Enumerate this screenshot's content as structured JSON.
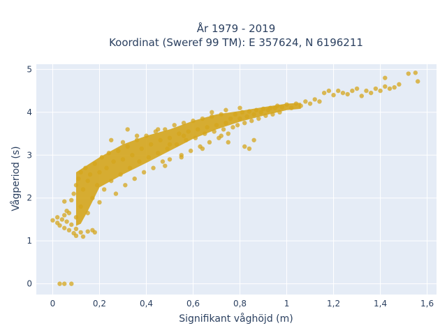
{
  "chart_data": {
    "type": "scatter",
    "title_lines": [
      "År 1979 - 2019",
      "Koordinat (Sweref 99 TM): E 357624, N 6196211"
    ],
    "xlabel": "Signifikant våghöjd (m)",
    "ylabel": "Vågperiod (s)",
    "xlim": [
      -0.07,
      1.64
    ],
    "ylim": [
      -0.25,
      5.12
    ],
    "x_ticks": [
      {
        "value": 0,
        "label": "0"
      },
      {
        "value": 0.2,
        "label": "0,2"
      },
      {
        "value": 0.4,
        "label": "0,4"
      },
      {
        "value": 0.6,
        "label": "0,6"
      },
      {
        "value": 0.8,
        "label": "0,8"
      },
      {
        "value": 1.0,
        "label": "1"
      },
      {
        "value": 1.2,
        "label": "1,2"
      },
      {
        "value": 1.4,
        "label": "1,4"
      },
      {
        "value": 1.6,
        "label": "1,6"
      }
    ],
    "y_ticks": [
      {
        "value": 0,
        "label": "0"
      },
      {
        "value": 1,
        "label": "1"
      },
      {
        "value": 2,
        "label": "2"
      },
      {
        "value": 3,
        "label": "3"
      },
      {
        "value": 4,
        "label": "4"
      },
      {
        "value": 5,
        "label": "5"
      }
    ],
    "grid": true,
    "marker_color": "#d4a51c",
    "plot_bg": "#e5ecf6",
    "series": [
      {
        "points": [
          [
            0.03,
            0.0
          ],
          [
            0.05,
            0.0
          ],
          [
            0.08,
            0.0
          ],
          [
            0.0,
            1.48
          ],
          [
            0.02,
            1.42
          ],
          [
            0.02,
            1.55
          ],
          [
            0.03,
            1.36
          ],
          [
            0.04,
            1.5
          ],
          [
            0.05,
            1.6
          ],
          [
            0.05,
            1.3
          ],
          [
            0.06,
            1.45
          ],
          [
            0.07,
            1.25
          ],
          [
            0.08,
            1.38
          ],
          [
            0.09,
            1.18
          ],
          [
            0.1,
            1.28
          ],
          [
            0.1,
            1.12
          ],
          [
            0.12,
            1.2
          ],
          [
            0.13,
            1.1
          ],
          [
            0.15,
            1.22
          ],
          [
            0.17,
            1.25
          ],
          [
            0.18,
            1.2
          ],
          [
            0.05,
            1.92
          ],
          [
            0.06,
            1.7
          ],
          [
            0.07,
            1.65
          ],
          [
            0.08,
            1.95
          ],
          [
            0.09,
            2.1
          ],
          [
            0.1,
            2.3
          ],
          [
            0.1,
            1.55
          ],
          [
            0.11,
            2.45
          ],
          [
            0.12,
            2.6
          ],
          [
            0.12,
            1.8
          ],
          [
            0.13,
            2.2
          ],
          [
            0.14,
            2.7
          ],
          [
            0.15,
            2.4
          ],
          [
            0.15,
            1.65
          ],
          [
            0.16,
            2.55
          ],
          [
            0.17,
            2.0
          ],
          [
            0.18,
            2.8
          ],
          [
            0.19,
            2.3
          ],
          [
            0.2,
            2.6
          ],
          [
            0.2,
            1.9
          ],
          [
            0.21,
            2.95
          ],
          [
            0.22,
            2.2
          ],
          [
            0.23,
            2.7
          ],
          [
            0.24,
            3.05
          ],
          [
            0.25,
            2.4
          ],
          [
            0.26,
            2.85
          ],
          [
            0.27,
            2.1
          ],
          [
            0.28,
            3.1
          ],
          [
            0.29,
            2.55
          ],
          [
            0.3,
            2.9
          ],
          [
            0.3,
            3.3
          ],
          [
            0.31,
            2.3
          ],
          [
            0.32,
            3.2
          ],
          [
            0.33,
            2.7
          ],
          [
            0.34,
            3.0
          ],
          [
            0.35,
            2.45
          ],
          [
            0.36,
            3.35
          ],
          [
            0.37,
            2.85
          ],
          [
            0.38,
            3.15
          ],
          [
            0.39,
            2.6
          ],
          [
            0.4,
            3.45
          ],
          [
            0.41,
            2.95
          ],
          [
            0.42,
            3.25
          ],
          [
            0.43,
            2.7
          ],
          [
            0.44,
            3.55
          ],
          [
            0.45,
            3.05
          ],
          [
            0.46,
            3.35
          ],
          [
            0.47,
            2.85
          ],
          [
            0.48,
            3.6
          ],
          [
            0.49,
            3.15
          ],
          [
            0.5,
            3.4
          ],
          [
            0.5,
            2.9
          ],
          [
            0.52,
            3.7
          ],
          [
            0.53,
            3.25
          ],
          [
            0.54,
            3.5
          ],
          [
            0.55,
            3.0
          ],
          [
            0.56,
            3.75
          ],
          [
            0.57,
            3.35
          ],
          [
            0.58,
            3.55
          ],
          [
            0.59,
            3.1
          ],
          [
            0.6,
            3.8
          ],
          [
            0.61,
            3.4
          ],
          [
            0.62,
            3.6
          ],
          [
            0.63,
            3.2
          ],
          [
            0.64,
            3.85
          ],
          [
            0.65,
            3.5
          ],
          [
            0.66,
            3.65
          ],
          [
            0.67,
            3.3
          ],
          [
            0.68,
            3.9
          ],
          [
            0.69,
            3.55
          ],
          [
            0.7,
            3.7
          ],
          [
            0.71,
            3.4
          ],
          [
            0.72,
            3.95
          ],
          [
            0.73,
            3.6
          ],
          [
            0.74,
            3.75
          ],
          [
            0.75,
            3.5
          ],
          [
            0.76,
            3.85
          ],
          [
            0.77,
            3.65
          ],
          [
            0.78,
            3.95
          ],
          [
            0.79,
            3.7
          ],
          [
            0.8,
            3.85
          ],
          [
            0.81,
            4.0
          ],
          [
            0.82,
            3.75
          ],
          [
            0.83,
            3.9
          ],
          [
            0.84,
            4.02
          ],
          [
            0.85,
            3.8
          ],
          [
            0.86,
            3.95
          ],
          [
            0.87,
            4.05
          ],
          [
            0.88,
            3.85
          ],
          [
            0.89,
            4.0
          ],
          [
            0.9,
            4.08
          ],
          [
            0.91,
            3.92
          ],
          [
            0.92,
            4.05
          ],
          [
            0.93,
            4.1
          ],
          [
            0.94,
            3.95
          ],
          [
            0.95,
            4.1
          ],
          [
            0.96,
            4.15
          ],
          [
            0.97,
            4.0
          ],
          [
            0.98,
            4.12
          ],
          [
            1.0,
            4.18
          ],
          [
            1.02,
            4.1
          ],
          [
            1.04,
            4.2
          ],
          [
            1.06,
            4.15
          ],
          [
            1.08,
            4.25
          ],
          [
            1.1,
            4.2
          ],
          [
            1.12,
            4.3
          ],
          [
            1.14,
            4.25
          ],
          [
            0.25,
            3.35
          ],
          [
            0.32,
            3.6
          ],
          [
            0.36,
            3.45
          ],
          [
            0.45,
            3.6
          ],
          [
            0.5,
            3.25
          ],
          [
            0.56,
            3.45
          ],
          [
            0.48,
            2.75
          ],
          [
            0.55,
            2.95
          ],
          [
            0.64,
            3.15
          ],
          [
            0.75,
            3.3
          ],
          [
            0.82,
            3.2
          ],
          [
            0.84,
            3.15
          ],
          [
            0.86,
            3.35
          ],
          [
            0.74,
            4.05
          ],
          [
            0.8,
            4.1
          ],
          [
            0.72,
            3.45
          ],
          [
            0.68,
            4.0
          ],
          [
            1.16,
            4.45
          ],
          [
            1.18,
            4.5
          ],
          [
            1.2,
            4.4
          ],
          [
            1.22,
            4.5
          ],
          [
            1.24,
            4.45
          ],
          [
            1.26,
            4.42
          ],
          [
            1.28,
            4.5
          ],
          [
            1.3,
            4.55
          ],
          [
            1.32,
            4.38
          ],
          [
            1.34,
            4.5
          ],
          [
            1.36,
            4.45
          ],
          [
            1.38,
            4.55
          ],
          [
            1.4,
            4.5
          ],
          [
            1.42,
            4.6
          ],
          [
            1.44,
            4.55
          ],
          [
            1.46,
            4.58
          ],
          [
            1.48,
            4.65
          ],
          [
            1.52,
            4.9
          ],
          [
            1.55,
            4.92
          ],
          [
            1.56,
            4.72
          ],
          [
            1.42,
            4.8
          ]
        ]
      }
    ]
  }
}
